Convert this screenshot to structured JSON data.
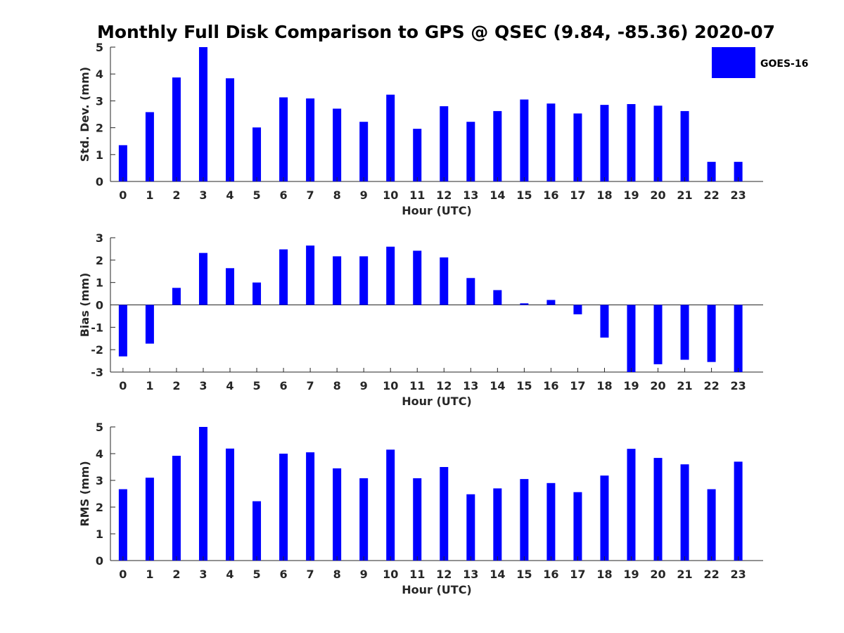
{
  "title": "Monthly Full Disk Comparison to GPS @ QSEC (9.84, -85.36) 2020-07",
  "legend": {
    "label": "GOES-16",
    "color": "#0000ff",
    "position": "top-right"
  },
  "chart_data": [
    {
      "type": "bar",
      "xlabel": "Hour (UTC)",
      "ylabel": "Std. Dev. (mm)",
      "ylim": [
        0,
        5
      ],
      "yticks": [
        "0",
        "1",
        "2",
        "3",
        "4",
        "5"
      ],
      "categories": [
        "0",
        "1",
        "2",
        "3",
        "4",
        "5",
        "6",
        "7",
        "8",
        "9",
        "10",
        "11",
        "12",
        "13",
        "14",
        "15",
        "16",
        "17",
        "18",
        "19",
        "20",
        "21",
        "22",
        "23"
      ],
      "series": [
        {
          "name": "GOES-16",
          "values": [
            1.35,
            2.58,
            3.87,
            5.0,
            3.84,
            2.01,
            3.13,
            3.09,
            2.71,
            2.22,
            3.23,
            1.96,
            2.8,
            2.22,
            2.62,
            3.05,
            2.9,
            2.53,
            2.85,
            2.88,
            2.82,
            2.62,
            0.73,
            0.73
          ]
        }
      ]
    },
    {
      "type": "bar",
      "xlabel": "Hour (UTC)",
      "ylabel": "Bias (mm)",
      "ylim": [
        -3,
        3
      ],
      "yticks": [
        "-3",
        "-2",
        "-1",
        "0",
        "1",
        "2",
        "3"
      ],
      "categories": [
        "0",
        "1",
        "2",
        "3",
        "4",
        "5",
        "6",
        "7",
        "8",
        "9",
        "10",
        "11",
        "12",
        "13",
        "14",
        "15",
        "16",
        "17",
        "18",
        "19",
        "20",
        "21",
        "22",
        "23"
      ],
      "series": [
        {
          "name": "GOES-16",
          "values": [
            -2.3,
            -1.73,
            0.76,
            2.32,
            1.64,
            1.0,
            2.48,
            2.65,
            2.17,
            2.17,
            2.6,
            2.42,
            2.12,
            1.2,
            0.66,
            0.07,
            0.22,
            -0.42,
            -1.46,
            -3.0,
            -2.65,
            -2.45,
            -2.55,
            -3.0
          ]
        }
      ]
    },
    {
      "type": "bar",
      "xlabel": "Hour (UTC)",
      "ylabel": "RMS (mm)",
      "ylim": [
        0,
        5
      ],
      "yticks": [
        "0",
        "1",
        "2",
        "3",
        "4",
        "5"
      ],
      "categories": [
        "0",
        "1",
        "2",
        "3",
        "4",
        "5",
        "6",
        "7",
        "8",
        "9",
        "10",
        "11",
        "12",
        "13",
        "14",
        "15",
        "16",
        "17",
        "18",
        "19",
        "20",
        "21",
        "22",
        "23"
      ],
      "series": [
        {
          "name": "GOES-16",
          "values": [
            2.67,
            3.1,
            3.92,
            5.0,
            4.19,
            2.22,
            4.0,
            4.05,
            3.45,
            3.08,
            4.15,
            3.08,
            3.5,
            2.48,
            2.7,
            3.05,
            2.9,
            2.56,
            3.18,
            4.18,
            3.84,
            3.6,
            2.67,
            3.7
          ]
        }
      ]
    }
  ]
}
